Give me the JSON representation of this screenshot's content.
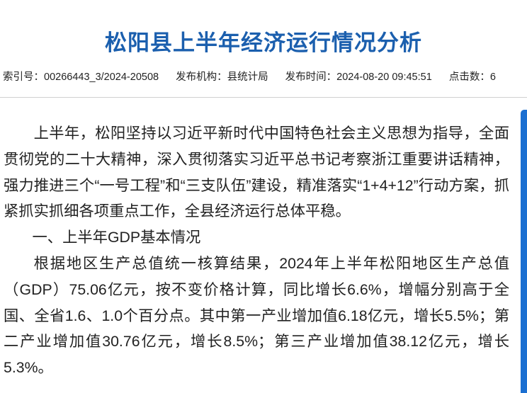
{
  "title": "松阳县上半年经济运行情况分析",
  "meta": {
    "index_label": "索引号：",
    "index_value": "00266443_3/2024-20508",
    "org_label": "发布机构：",
    "org_value": "县统计局",
    "time_label": "发布时间：",
    "time_value": "2024-08-20 09:45:51",
    "clicks_label": "点击数：",
    "clicks_value": "6"
  },
  "paragraphs": [
    "上半年，松阳坚持以习近平新时代中国特色社会主义思想为指导，全面贯彻党的二十大精神，深入贯彻落实习近平总书记考察浙江重要讲话精神，强力推进三个“一号工程”和“三支队伍”建设，精准落实“1+4+12”行动方案，抓紧抓实抓细各项重点工作，全县经济运行总体平稳。",
    "一、上半年GDP基本情况",
    "根据地区生产总值统一核算结果，2024年上半年松阳地区生产总值（GDP）75.06亿元，按不变价格计算，同比增长6.6%，增幅分别高于全国、全省1.6、1.0个百分点。其中第一产业增加值6.18亿元，增长5.5%；第二产业增加值30.76亿元，增长8.5%；第三产业增加值38.12亿元，增长5.3%。"
  ],
  "colors": {
    "title": "#1b5fae",
    "scrollbar": "#1b6fd1"
  }
}
